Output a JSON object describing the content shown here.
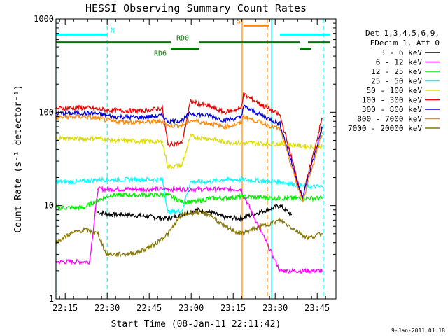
{
  "chart_data": {
    "type": "line",
    "title": "HESSI Observing Summary Count Rates",
    "xlabel": "Start Time (08-Jan-11 22:11:42)",
    "ylabel": "Count Rate (s⁻¹ detector⁻¹)",
    "yscale": "log",
    "ylim": [
      1,
      1000
    ],
    "xlim_minutes": [
      0,
      100
    ],
    "x_unit": "minutes since 22:11:42",
    "y_ticks": [
      {
        "value": 1,
        "label": "1"
      },
      {
        "value": 10,
        "label": "10"
      },
      {
        "value": 100,
        "label": "100"
      },
      {
        "value": 1000,
        "label": "1000"
      }
    ],
    "x_ticks": [
      {
        "value": 3.3,
        "label": "22:15"
      },
      {
        "value": 18.3,
        "label": "22:30"
      },
      {
        "value": 33.3,
        "label": "22:45"
      },
      {
        "value": 48.3,
        "label": "23:00"
      },
      {
        "value": 63.3,
        "label": "23:15"
      },
      {
        "value": 78.3,
        "label": "23:30"
      },
      {
        "value": 93.3,
        "label": "23:45"
      }
    ],
    "legend_header": [
      "Det 1,3,4,5,6,9,",
      "FDecim 1, Att 0"
    ],
    "series": [
      {
        "name": "3 - 6 keV",
        "color": "#000000",
        "x": [
          15,
          20,
          25,
          30,
          35,
          40,
          45,
          50,
          55,
          60,
          66,
          80,
          84
        ],
        "y": [
          8.5,
          8.0,
          8.0,
          7.8,
          7.5,
          7.3,
          8.0,
          9.0,
          8.5,
          7.5,
          7.3,
          10,
          8
        ]
      },
      {
        "name": "6 - 12 keV",
        "color": "#ff00ff",
        "x": [
          0,
          8,
          12,
          15,
          20,
          30,
          40,
          48,
          55,
          60,
          66,
          80,
          85,
          95
        ],
        "y": [
          2.5,
          2.5,
          2.5,
          15,
          15,
          15,
          15,
          15,
          15,
          15,
          15,
          2,
          2,
          2
        ]
      },
      {
        "name": "12 - 25 keV",
        "color": "#00ee00",
        "x": [
          0,
          10,
          15,
          20,
          30,
          40,
          45,
          50,
          55,
          60,
          66,
          80,
          85,
          95
        ],
        "y": [
          9.5,
          9.5,
          11.5,
          13,
          13,
          13,
          11,
          11,
          12,
          12,
          12.5,
          12,
          12,
          12
        ]
      },
      {
        "name": "25 - 50 keV",
        "color": "#00ffff",
        "x": [
          0,
          8,
          12,
          15,
          20,
          30,
          38,
          40,
          45,
          48,
          50,
          55,
          60,
          66,
          80,
          90,
          95
        ],
        "y": [
          18,
          18,
          18.5,
          19,
          19,
          19,
          19,
          8.5,
          8.8,
          18,
          18,
          18,
          19,
          19,
          18,
          16,
          16
        ]
      },
      {
        "name": "50 - 100 keV",
        "color": "#dddd00",
        "x": [
          0,
          10,
          15,
          20,
          30,
          38,
          40,
          45,
          48,
          55,
          60,
          66,
          80,
          90,
          95
        ],
        "y": [
          53,
          52,
          53,
          50,
          49,
          48,
          26,
          27,
          55,
          52,
          48,
          47,
          46,
          43,
          43
        ]
      },
      {
        "name": "100 - 300 keV",
        "color": "#ee0000",
        "x": [
          0,
          10,
          15,
          20,
          30,
          38,
          40,
          45,
          48,
          55,
          60,
          66,
          67,
          80,
          88,
          95
        ],
        "y": [
          110,
          112,
          108,
          105,
          103,
          110,
          45,
          47,
          130,
          115,
          100,
          110,
          155,
          93,
          12,
          85
        ]
      },
      {
        "name": "300 - 800 keV",
        "color": "#0000dd",
        "x": [
          0,
          10,
          15,
          20,
          30,
          38,
          40,
          45,
          48,
          55,
          60,
          66,
          67,
          80,
          88,
          95
        ],
        "y": [
          97,
          98,
          96,
          90,
          88,
          92,
          80,
          82,
          97,
          92,
          82,
          88,
          115,
          75,
          12,
          68
        ]
      },
      {
        "name": "800 - 7000 keV",
        "color": "#ff8800",
        "x": [
          0,
          10,
          15,
          20,
          30,
          38,
          40,
          45,
          48,
          55,
          60,
          66,
          67,
          80,
          88,
          95
        ],
        "y": [
          88,
          90,
          86,
          80,
          78,
          80,
          72,
          72,
          82,
          76,
          70,
          76,
          90,
          66,
          11,
          60
        ]
      },
      {
        "name": "7000 - 20000 keV",
        "color": "#887700",
        "x": [
          0,
          5,
          10,
          15,
          18,
          25,
          30,
          35,
          40,
          45,
          50,
          55,
          60,
          66,
          80,
          90,
          95
        ],
        "y": [
          4,
          5,
          5.5,
          5,
          3,
          3,
          3.2,
          3.8,
          5,
          8,
          8.5,
          8,
          6,
          5,
          7,
          4.5,
          5
        ]
      }
    ],
    "bars": [
      {
        "label": "N",
        "color": "#00ffff",
        "y_value": 680,
        "segments": [
          [
            0,
            18.3
          ],
          [
            80,
            98
          ]
        ]
      },
      {
        "label": "RD0",
        "color": "#007700",
        "y_value": 560,
        "segments": [
          [
            0,
            41
          ],
          [
            51,
            87
          ],
          [
            90,
            98
          ]
        ]
      },
      {
        "label": "RD6",
        "color": "#007700",
        "y_value": 480,
        "segments": [
          [
            41,
            51
          ],
          [
            87,
            91
          ]
        ]
      },
      {
        "label": "S",
        "color": "#ff8800",
        "y_value": 850,
        "segments": [
          [
            67,
            76
          ]
        ]
      }
    ],
    "vlines": [
      {
        "x": 0,
        "color": "#00ffff",
        "style": "solid"
      },
      {
        "x": 18.3,
        "color": "#00ffff",
        "style": "dashed"
      },
      {
        "x": 77,
        "color": "#00ffff",
        "style": "solid"
      },
      {
        "x": 95.5,
        "color": "#00ffff",
        "style": "dashed"
      },
      {
        "x": 66.5,
        "color": "#ff8800",
        "style": "solid"
      },
      {
        "x": 75.5,
        "color": "#ff8800",
        "style": "dashed"
      }
    ],
    "timestamp": "9-Jan-2011 01:18"
  }
}
